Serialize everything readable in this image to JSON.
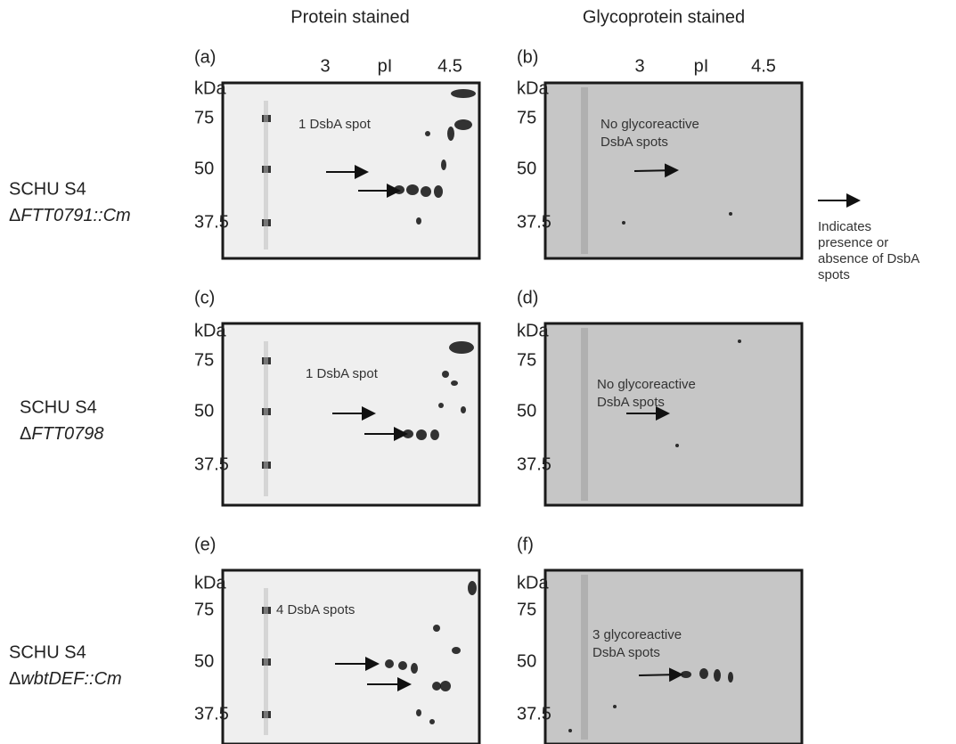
{
  "column_headers": [
    "Protein stained",
    "Glycoprotein stained"
  ],
  "rows": [
    {
      "label": {
        "line1": "SCHU S4",
        "prefix": "Δ",
        "strain": "FTT0791::Cm"
      },
      "panels": [
        {
          "letter": "(a)",
          "pi_axis": [
            "3",
            "pI",
            "4.5"
          ],
          "kda": "kDa",
          "markers": [
            "75",
            "50",
            "37.5"
          ],
          "annotation": [
            "1 DsbA spot"
          ]
        },
        {
          "letter": "(b)",
          "pi_axis": [
            "3",
            "pI",
            "4.5"
          ],
          "kda": "kDa",
          "markers": [
            "75",
            "50",
            "37.5"
          ],
          "annotation": [
            "No glycoreactive",
            "DsbA spots"
          ]
        }
      ]
    },
    {
      "label": {
        "line1": "SCHU S4",
        "prefix": "Δ",
        "strain": "FTT0798"
      },
      "panels": [
        {
          "letter": "(c)",
          "kda": "kDa",
          "markers": [
            "75",
            "50",
            "37.5"
          ],
          "annotation": [
            "1 DsbA spot"
          ]
        },
        {
          "letter": "(d)",
          "kda": "kDa",
          "markers": [
            "75",
            "50",
            "37.5"
          ],
          "annotation": [
            "No glycoreactive",
            "DsbA spots"
          ]
        }
      ]
    },
    {
      "label": {
        "line1": "SCHU S4",
        "prefix": "Δ",
        "strain": "wbtDEF::Cm"
      },
      "panels": [
        {
          "letter": "(e)",
          "kda": "kDa",
          "markers": [
            "75",
            "50",
            "37.5"
          ],
          "annotation": [
            "4 DsbA spots"
          ]
        },
        {
          "letter": "(f)",
          "kda": "kDa",
          "markers": [
            "75",
            "50",
            "37.5"
          ],
          "annotation": [
            "3 glycoreactive",
            "DsbA spots"
          ]
        }
      ]
    }
  ],
  "legend": {
    "lines": [
      "Indicates",
      "presence or",
      "absence of DsbA",
      "spots"
    ]
  }
}
